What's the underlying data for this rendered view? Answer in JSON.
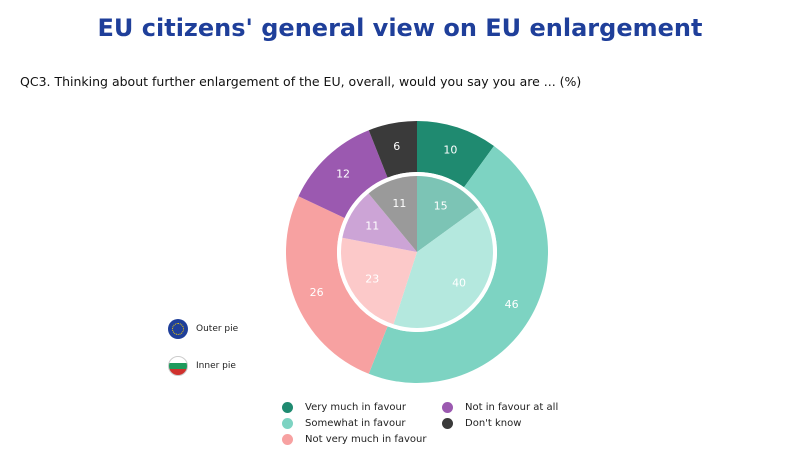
{
  "title": "EU citizens' general view on EU enlargement",
  "question": "QC3. Thinking about further enlargement of the EU, overall, would you say you are ... (%)",
  "pie_legend": {
    "outer": {
      "label": "Outer pie",
      "icon": "eu-flag-icon"
    },
    "inner": {
      "label": "Inner pie",
      "icon": "bulgaria-flag-icon"
    }
  },
  "chart_data": {
    "type": "pie",
    "categories": [
      "Very much in favour",
      "Somewhat in favour",
      "Not very much in favour",
      "Not in favour at all",
      "Don't know"
    ],
    "series": [
      {
        "name": "Outer pie",
        "values": [
          10,
          46,
          26,
          12,
          6
        ],
        "colors": [
          "#1f8a70",
          "#7dd3c2",
          "#f7a1a1",
          "#9b59b0",
          "#3a3a3a"
        ]
      },
      {
        "name": "Inner pie",
        "values": [
          15,
          40,
          23,
          11,
          11
        ],
        "colors": [
          "#7cc4b5",
          "#b4e8de",
          "#fcc9c9",
          "#cca4d6",
          "#9a9a9a"
        ]
      }
    ],
    "legend_placement": "bottom"
  }
}
